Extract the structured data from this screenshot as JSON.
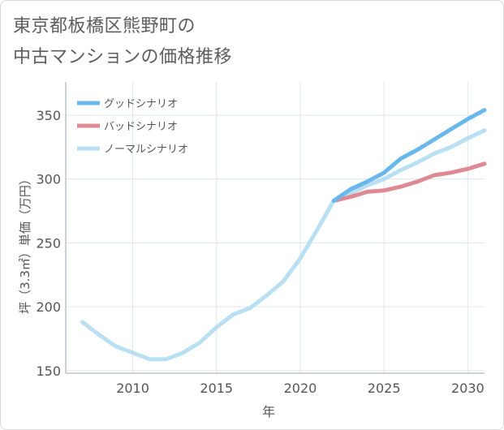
{
  "title": {
    "line1": "東京都板橋区熊野町の",
    "line2": "中古マンションの価格推移"
  },
  "chart_data": {
    "type": "line",
    "xlabel": "年",
    "ylabel": "坪（3.3㎡）単価（万円）",
    "xlim": [
      2006,
      2031
    ],
    "ylim": [
      148,
      376
    ],
    "x_ticks": [
      2010,
      2015,
      2020,
      2025,
      2030
    ],
    "y_ticks": [
      150,
      200,
      250,
      300,
      350
    ],
    "grid": true,
    "legend_position": "top-left",
    "series": [
      {
        "name": "グッドシナリオ",
        "color": "#68b8ec",
        "x": [
          2022,
          2023,
          2024,
          2025,
          2026,
          2027,
          2028,
          2029,
          2030,
          2031
        ],
        "values": [
          283,
          292,
          298,
          305,
          316,
          323,
          331,
          339,
          347,
          354
        ]
      },
      {
        "name": "バッドシナリオ",
        "color": "#df8a93",
        "x": [
          2022,
          2023,
          2024,
          2025,
          2026,
          2027,
          2028,
          2029,
          2030,
          2031
        ],
        "values": [
          283,
          286,
          290,
          291,
          294,
          298,
          303,
          305,
          308,
          312
        ]
      },
      {
        "name": "ノーマルシナリオ",
        "color": "#b9dff2",
        "x": [
          2007,
          2008,
          2009,
          2010,
          2011,
          2012,
          2013,
          2014,
          2015,
          2016,
          2017,
          2018,
          2019,
          2020,
          2021,
          2022,
          2023,
          2024,
          2025,
          2026,
          2027,
          2028,
          2029,
          2030,
          2031
        ],
        "values": [
          188,
          178,
          169,
          164,
          159,
          159,
          164,
          172,
          184,
          194,
          199,
          209,
          220,
          238,
          260,
          283,
          289,
          295,
          300,
          307,
          313,
          320,
          325,
          332,
          338
        ]
      }
    ]
  }
}
